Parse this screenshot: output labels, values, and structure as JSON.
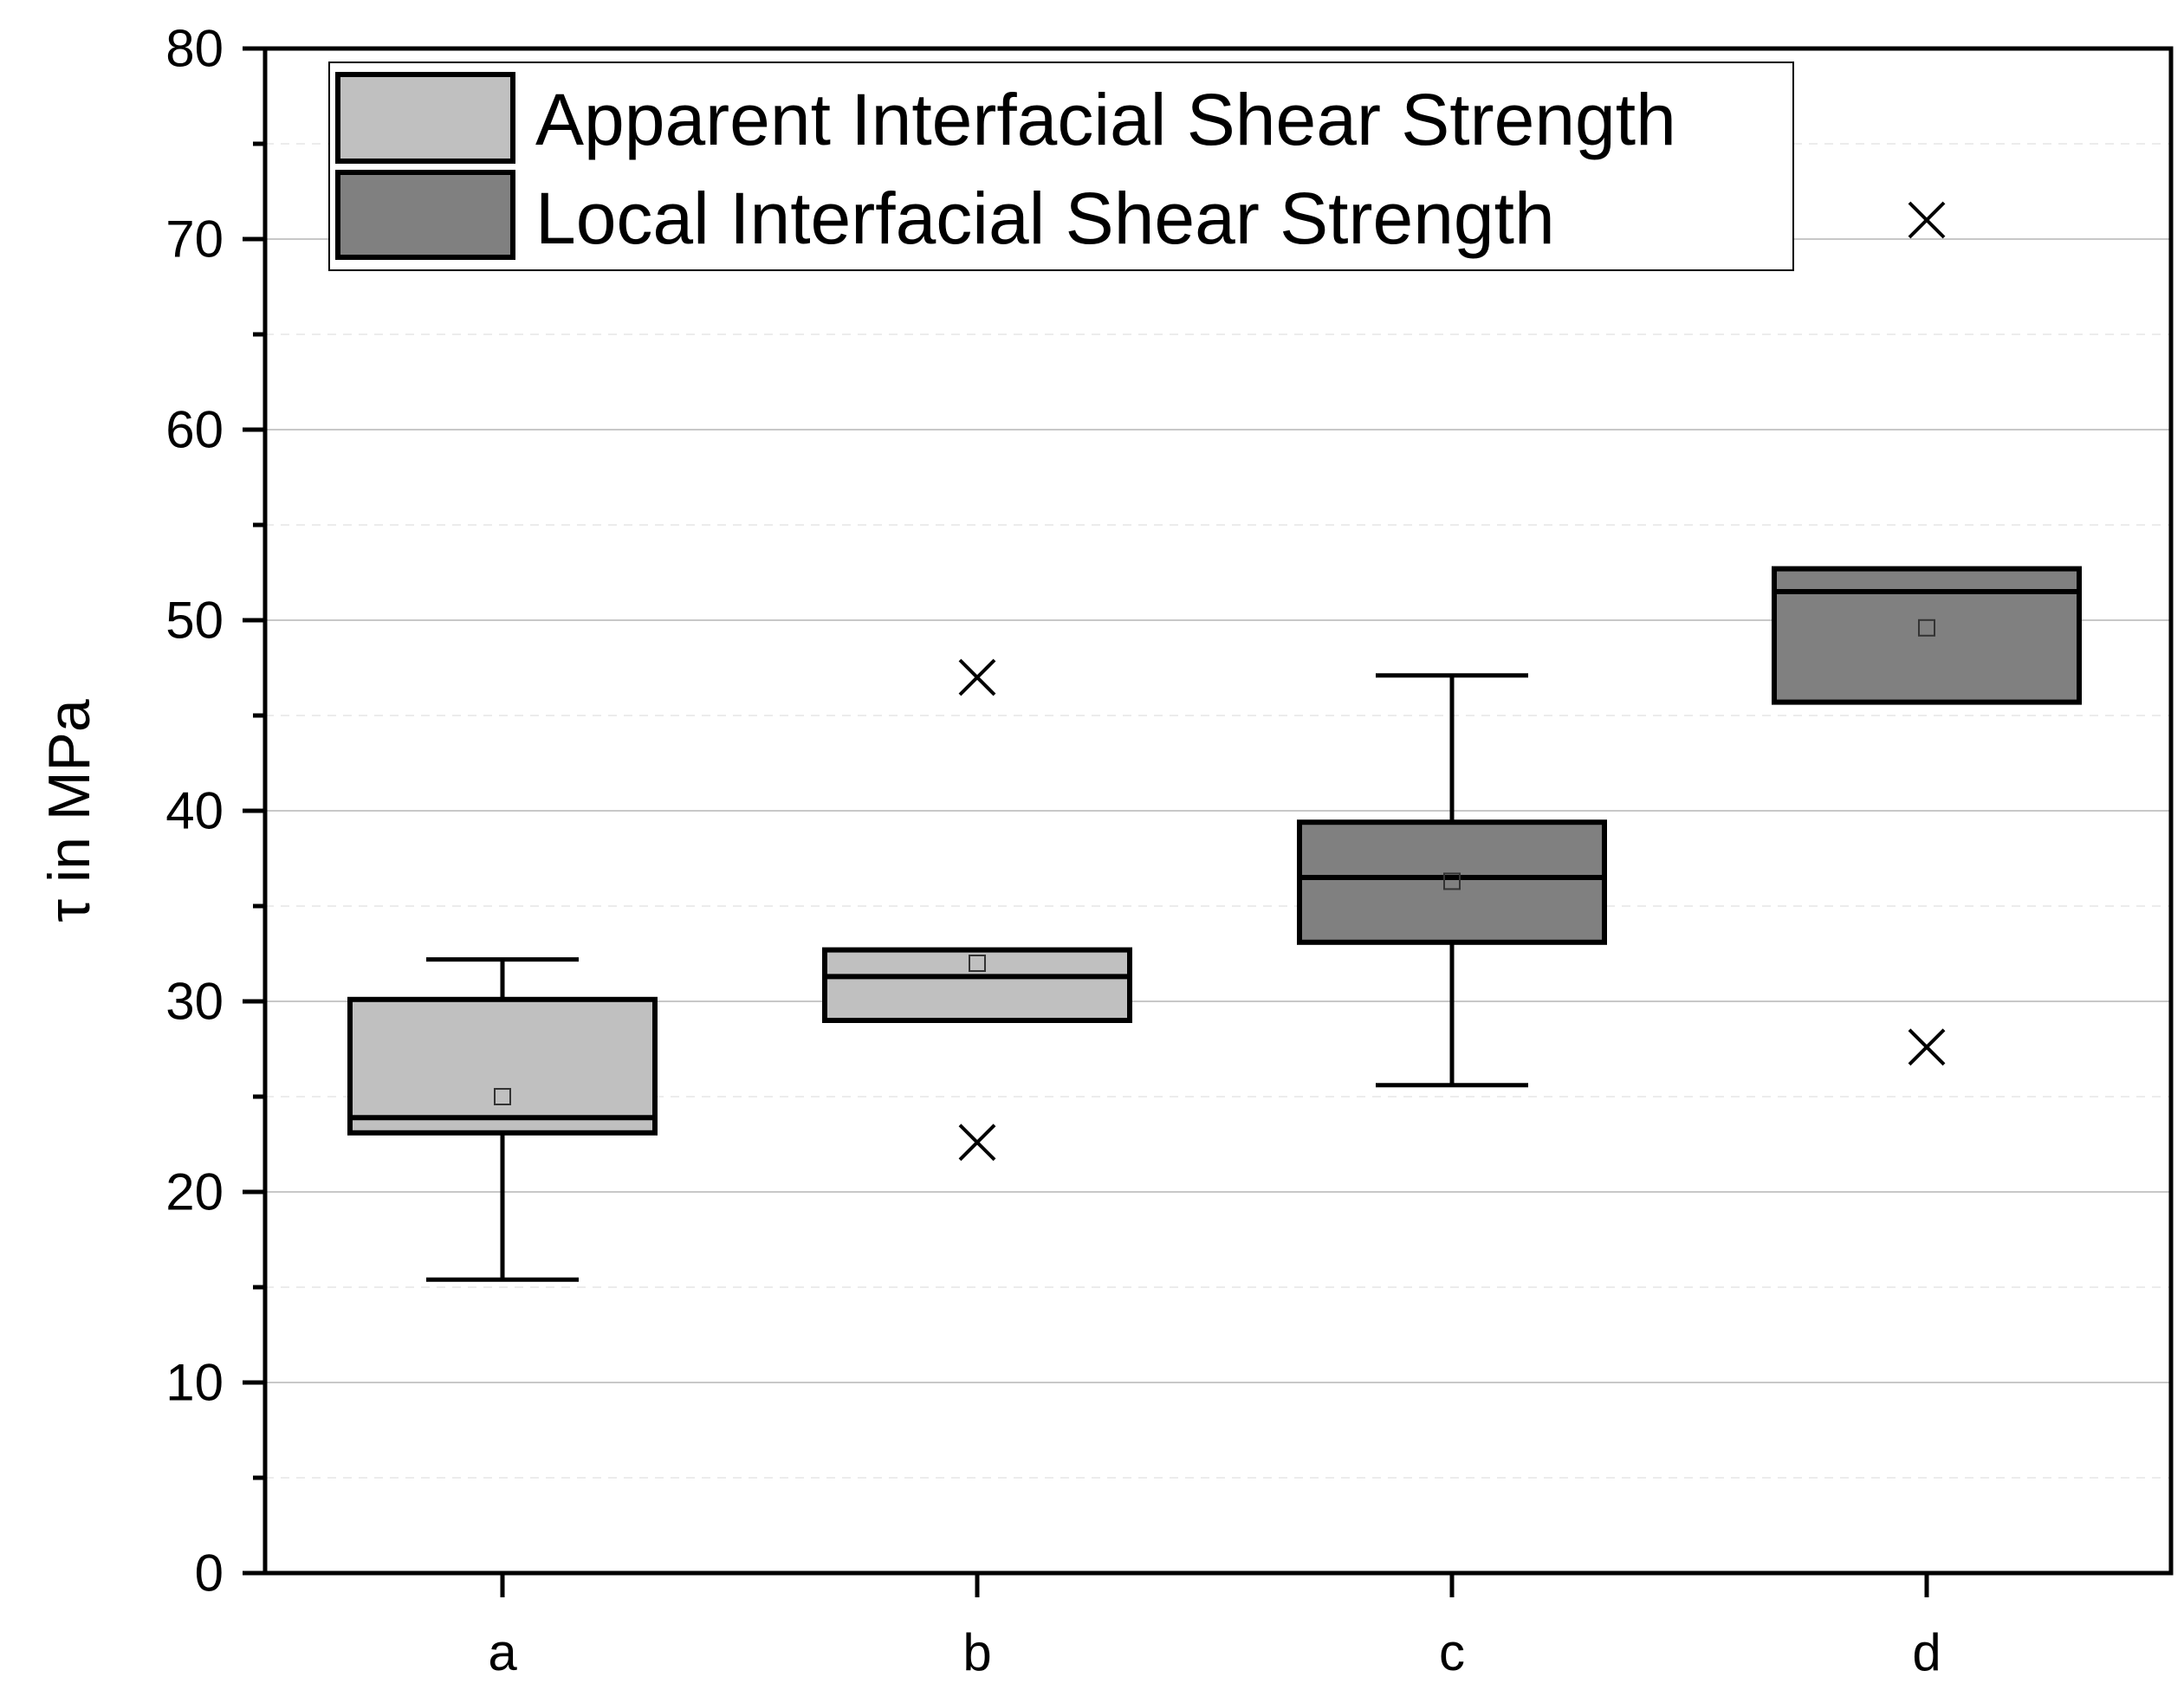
{
  "chart_data": {
    "type": "box",
    "title": "",
    "xlabel": "",
    "ylabel": "τ in MPa",
    "ylim": [
      0,
      80
    ],
    "yticks": [
      "0",
      "10",
      "20",
      "30",
      "40",
      "50",
      "60",
      "70",
      "80"
    ],
    "grid": true,
    "legend_position": "top-left",
    "legend": [
      {
        "name": "Apparent Interfacial Shear Strength",
        "color": "#c0c0c0"
      },
      {
        "name": "Local Interfacial Shear Strength",
        "color": "#808080"
      }
    ],
    "categories": [
      "a",
      "b",
      "c",
      "d"
    ],
    "boxes": [
      {
        "category": "a",
        "series": "Apparent Interfacial Shear Strength",
        "whisker_low": 15.4,
        "q1": 23.1,
        "median": 23.9,
        "q3": 30.1,
        "whisker_high": 32.2,
        "mean": 25.0,
        "outliers": []
      },
      {
        "category": "b",
        "series": "Apparent Interfacial Shear Strength",
        "whisker_low": 29.0,
        "q1": 29.0,
        "median": 31.3,
        "q3": 32.7,
        "whisker_high": 32.7,
        "mean": 32.0,
        "outliers": [
          47.0,
          22.6
        ]
      },
      {
        "category": "c",
        "series": "Local Interfacial Shear Strength",
        "whisker_low": 25.6,
        "q1": 33.1,
        "median": 36.5,
        "q3": 39.4,
        "whisker_high": 47.1,
        "mean": 36.3,
        "outliers": []
      },
      {
        "category": "d",
        "series": "Local Interfacial Shear Strength",
        "whisker_low": 45.7,
        "q1": 45.7,
        "median": 51.5,
        "q3": 52.7,
        "whisker_high": 52.7,
        "mean": 49.6,
        "outliers": [
          71.0,
          27.6
        ]
      }
    ]
  }
}
